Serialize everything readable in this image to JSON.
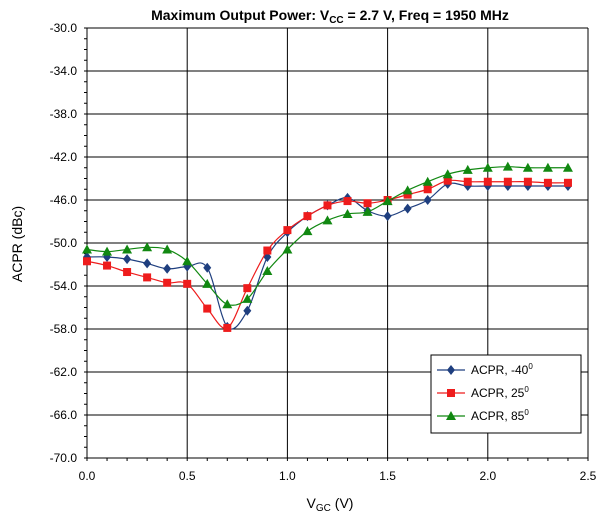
{
  "title": {
    "prefix": "Maximum Output Power: V",
    "sub": "CC",
    "suffix": " = 2.7 V, Freq = 1950 MHz"
  },
  "xlabel": {
    "main": "V",
    "sub": "GC",
    "suffix": " (V)"
  },
  "ylabel": "ACPR (dBc)",
  "colors": {
    "grid": "#000000",
    "plot_bg": "#ffffff"
  },
  "chart_data": {
    "type": "line",
    "xlim": [
      0.0,
      2.5
    ],
    "ylim": [
      -70.0,
      -30.0
    ],
    "x_ticks": [
      0.0,
      0.5,
      1.0,
      1.5,
      2.0,
      2.5
    ],
    "x_tick_labels": [
      "0.0",
      "0.5",
      "1.0",
      "1.5",
      "2.0",
      "2.5"
    ],
    "y_ticks": [
      -30.0,
      -34.0,
      -38.0,
      -42.0,
      -46.0,
      -50.0,
      -54.0,
      -58.0,
      -62.0,
      -66.0,
      -70.0
    ],
    "y_tick_labels": [
      "-30.0",
      "-34.0",
      "-38.0",
      "-42.0",
      "-46.0",
      "-50.0",
      "-54.0",
      "-58.0",
      "-62.0",
      "-66.0",
      "-70.0"
    ],
    "grid": true,
    "legend_position": "bottom-right",
    "series": [
      {
        "name": "ACPR, -40",
        "degree": "0",
        "color": "#1f3f7f",
        "marker": "diamond",
        "x": [
          0.0,
          0.1,
          0.2,
          0.3,
          0.4,
          0.5,
          0.6,
          0.7,
          0.8,
          0.9,
          1.0,
          1.1,
          1.2,
          1.3,
          1.4,
          1.5,
          1.6,
          1.7,
          1.8,
          1.9,
          2.0,
          2.1,
          2.2,
          2.3,
          2.4
        ],
        "y": [
          -51.3,
          -51.3,
          -51.5,
          -51.9,
          -52.4,
          -52.2,
          -52.3,
          -57.8,
          -56.3,
          -51.3,
          -49.0,
          -47.5,
          -46.5,
          -45.8,
          -47.0,
          -47.5,
          -46.8,
          -46.0,
          -44.5,
          -44.7,
          -44.7,
          -44.7,
          -44.7,
          -44.7,
          -44.7
        ]
      },
      {
        "name": "ACPR, 25",
        "degree": "0",
        "color": "#ee1c1c",
        "marker": "square",
        "x": [
          0.0,
          0.1,
          0.2,
          0.3,
          0.4,
          0.5,
          0.6,
          0.7,
          0.8,
          0.9,
          1.0,
          1.1,
          1.2,
          1.3,
          1.4,
          1.5,
          1.6,
          1.7,
          1.8,
          1.9,
          2.0,
          2.1,
          2.2,
          2.3,
          2.4
        ],
        "y": [
          -51.7,
          -52.1,
          -52.7,
          -53.2,
          -53.7,
          -53.8,
          -56.1,
          -57.9,
          -54.2,
          -50.7,
          -48.8,
          -47.5,
          -46.5,
          -46.1,
          -46.3,
          -46.0,
          -45.5,
          -45.0,
          -44.2,
          -44.3,
          -44.3,
          -44.3,
          -44.3,
          -44.4,
          -44.4
        ]
      },
      {
        "name": "ACPR, 85",
        "degree": "0",
        "color": "#118811",
        "marker": "triangle",
        "x": [
          0.0,
          0.1,
          0.2,
          0.3,
          0.4,
          0.5,
          0.6,
          0.7,
          0.8,
          0.9,
          1.0,
          1.1,
          1.2,
          1.3,
          1.4,
          1.5,
          1.6,
          1.7,
          1.8,
          1.9,
          2.0,
          2.1,
          2.2,
          2.3,
          2.4
        ],
        "y": [
          -50.6,
          -50.8,
          -50.6,
          -50.4,
          -50.6,
          -51.7,
          -53.8,
          -55.7,
          -55.2,
          -52.6,
          -50.6,
          -48.9,
          -47.9,
          -47.3,
          -47.1,
          -46.1,
          -45.1,
          -44.3,
          -43.6,
          -43.2,
          -43.0,
          -42.9,
          -43.0,
          -43.0,
          -43.0
        ]
      }
    ]
  }
}
